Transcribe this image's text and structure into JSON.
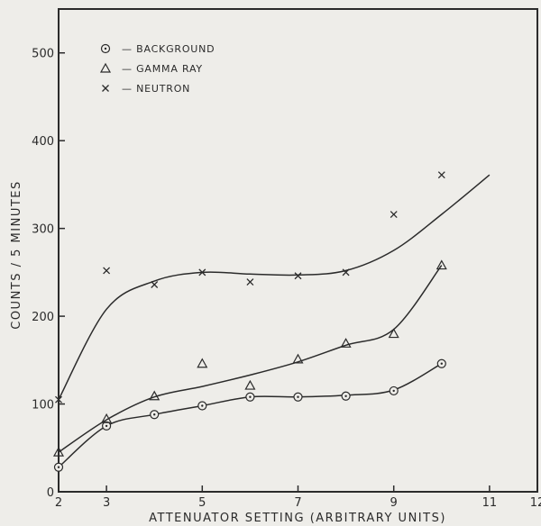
{
  "chart_data": {
    "type": "scatter",
    "title": "",
    "xlabel": "ATTENUATOR  SETTING  (ARBITRARY UNITS)",
    "ylabel": "COUNTS / 5 MINUTES",
    "xlim": [
      2,
      12
    ],
    "ylim": [
      0,
      550
    ],
    "x_ticks": [
      2,
      3,
      5,
      7,
      9,
      11,
      12
    ],
    "x_tick_labels": [
      "2",
      "3",
      "5",
      "7",
      "9",
      "11",
      "12"
    ],
    "y_ticks": [
      0,
      100,
      200,
      300,
      400,
      500
    ],
    "y_tick_labels": [
      "0",
      "100",
      "200",
      "300",
      "400",
      "500"
    ],
    "grid": false,
    "legend_position": "top-left",
    "colors": {
      "ink": "#2b2b2b",
      "paper": "#eeede9"
    },
    "series": [
      {
        "name": "BACKGROUND",
        "legend_label": "— BACKGROUND",
        "marker": "circle-dot",
        "points": [
          [
            2,
            28
          ],
          [
            3,
            75
          ],
          [
            4,
            88
          ],
          [
            5,
            98
          ],
          [
            6,
            108
          ],
          [
            7,
            108
          ],
          [
            8,
            109
          ],
          [
            9,
            115
          ],
          [
            10,
            146
          ]
        ],
        "curve": [
          [
            2,
            28
          ],
          [
            3,
            75
          ],
          [
            4,
            88
          ],
          [
            5,
            98
          ],
          [
            6,
            108
          ],
          [
            7,
            108
          ],
          [
            8,
            110
          ],
          [
            9,
            116
          ],
          [
            10,
            146
          ]
        ]
      },
      {
        "name": "GAMMA RAY",
        "legend_label": "— GAMMA  RAY",
        "marker": "triangle",
        "points": [
          [
            2,
            45
          ],
          [
            3,
            83
          ],
          [
            4,
            109
          ],
          [
            5,
            146
          ],
          [
            6,
            121
          ],
          [
            7,
            151
          ],
          [
            8,
            169
          ],
          [
            9,
            180
          ],
          [
            10,
            258
          ]
        ],
        "curve": [
          [
            2,
            45
          ],
          [
            3,
            82
          ],
          [
            4,
            108
          ],
          [
            5,
            120
          ],
          [
            6,
            133
          ],
          [
            7,
            148
          ],
          [
            8,
            167
          ],
          [
            9,
            185
          ],
          [
            10,
            258
          ]
        ]
      },
      {
        "name": "NEUTRON",
        "legend_label": "— NEUTRON",
        "marker": "x",
        "points": [
          [
            2,
            105
          ],
          [
            3,
            252
          ],
          [
            4,
            236
          ],
          [
            5,
            250
          ],
          [
            6,
            239
          ],
          [
            7,
            246
          ],
          [
            8,
            250
          ],
          [
            9,
            316
          ],
          [
            10,
            361
          ]
        ],
        "curve": [
          [
            2,
            105
          ],
          [
            3,
            208
          ],
          [
            4,
            240
          ],
          [
            5,
            250
          ],
          [
            6,
            248
          ],
          [
            7,
            247
          ],
          [
            8,
            252
          ],
          [
            9,
            275
          ],
          [
            10,
            316
          ],
          [
            11,
            361
          ]
        ]
      }
    ]
  }
}
